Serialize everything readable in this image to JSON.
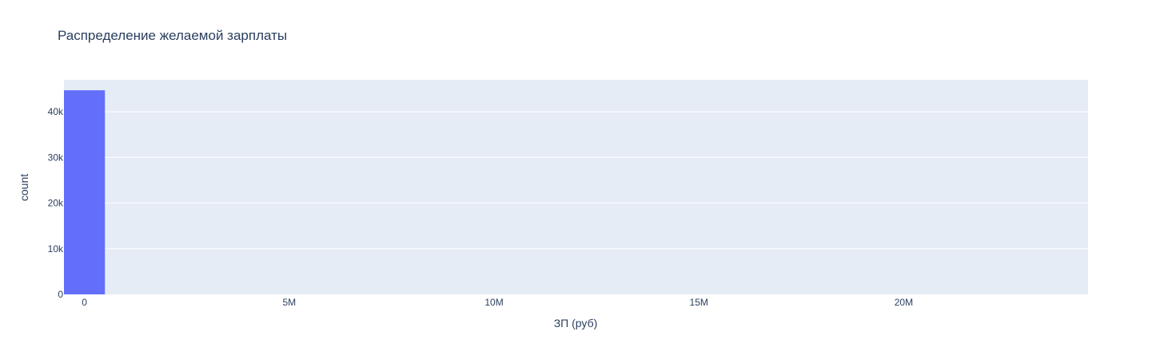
{
  "chart_data": {
    "type": "bar",
    "title": "Распределение желаемой зарплаты",
    "xlabel": "ЗП (руб)",
    "ylabel": "count",
    "xlim": [
      -500000,
      24500000
    ],
    "ylim": [
      0,
      47000
    ],
    "x_ticks": [
      {
        "value": 0,
        "label": "0"
      },
      {
        "value": 5000000,
        "label": "5M"
      },
      {
        "value": 10000000,
        "label": "10M"
      },
      {
        "value": 15000000,
        "label": "15M"
      },
      {
        "value": 20000000,
        "label": "20M"
      }
    ],
    "y_ticks": [
      {
        "value": 0,
        "label": "0"
      },
      {
        "value": 10000,
        "label": "10k"
      },
      {
        "value": 20000,
        "label": "20k"
      },
      {
        "value": 30000,
        "label": "30k"
      },
      {
        "value": 40000,
        "label": "40k"
      }
    ],
    "bins": [
      {
        "x0": -500000,
        "x1": 500000,
        "count": 44700
      }
    ],
    "grid": true,
    "legend": "none",
    "colors": {
      "bar": "#636efa",
      "plot_bg": "#e5ecf6",
      "grid": "#ffffff",
      "text": "#2a3f5f"
    }
  }
}
